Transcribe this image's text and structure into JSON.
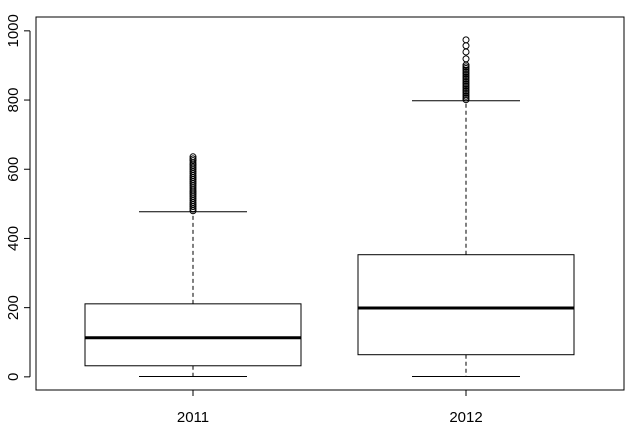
{
  "chart_data": {
    "type": "box",
    "categories": [
      "2011",
      "2012"
    ],
    "boxes": [
      {
        "min": 1,
        "q1": 32,
        "median": 113,
        "q3": 211,
        "max": 477,
        "outliers": [
          480,
          486,
          492,
          498,
          504,
          510,
          516,
          522,
          528,
          534,
          540,
          546,
          552,
          558,
          564,
          570,
          576,
          582,
          588,
          594,
          600,
          606,
          612,
          618,
          625,
          630,
          636
        ]
      },
      {
        "min": 1,
        "q1": 64,
        "median": 199,
        "q3": 353,
        "max": 798,
        "outliers": [
          801,
          806,
          811,
          816,
          821,
          826,
          831,
          836,
          841,
          846,
          851,
          856,
          861,
          866,
          871,
          876,
          881,
          886,
          891,
          896,
          901,
          919,
          939,
          957,
          974
        ]
      }
    ],
    "color": "#000000",
    "ylim": [
      -38,
      1040
    ],
    "yticks": [
      0,
      200,
      400,
      600,
      800,
      1000
    ]
  }
}
